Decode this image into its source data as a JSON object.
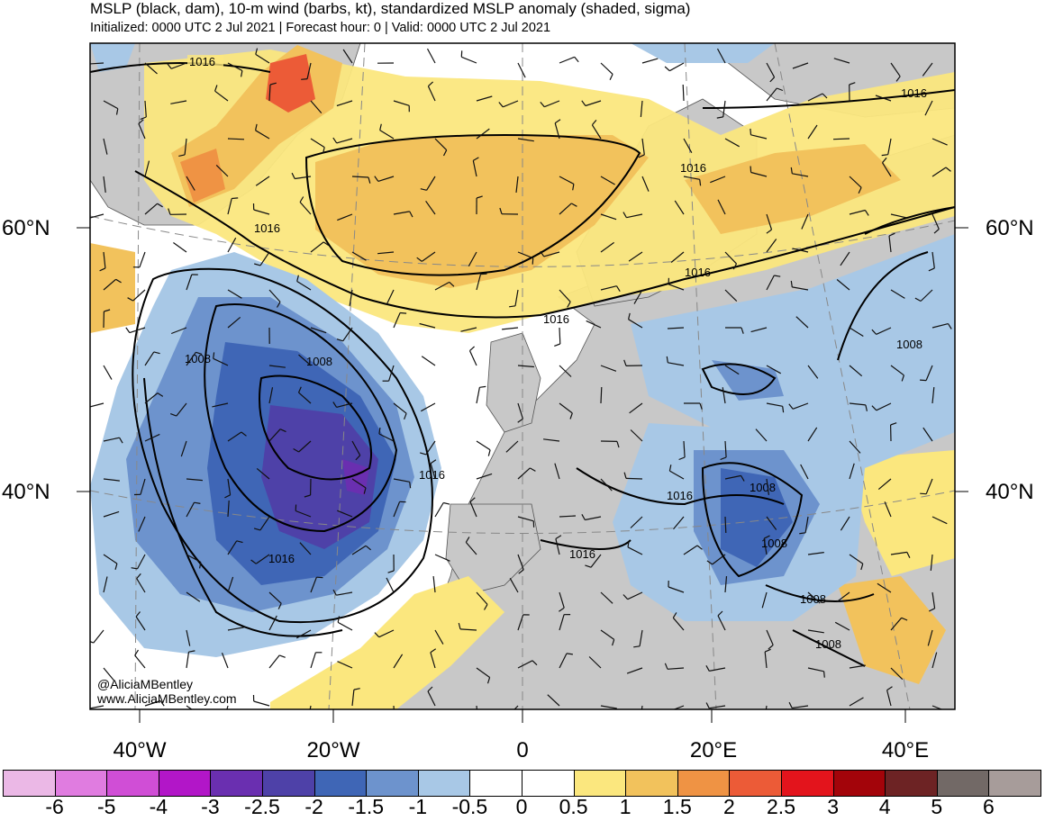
{
  "header": {
    "title": "MSLP (black, dam), 10-m wind (barbs, kt), standardized MSLP anomaly (shaded, sigma)",
    "subtitle": "Initialized: 0000 UTC 2 Jul 2021 | Forecast hour: 0 | Valid: 0000 UTC 2 Jul 2021"
  },
  "axes": {
    "lat_left": [
      "60°N",
      "40°N"
    ],
    "lat_right": [
      "60°N",
      "40°N"
    ],
    "lon_bottom": [
      "40°W",
      "20°W",
      "0",
      "20°E",
      "40°E"
    ]
  },
  "isobar_labels": [
    "1016",
    "1016",
    "1016",
    "1016",
    "1016",
    "1016",
    "1016",
    "1016",
    "1016",
    "1008",
    "1008",
    "1008",
    "1008",
    "1008",
    "1008"
  ],
  "credit": {
    "handle": "@AliciaMBentley",
    "website": "www.AliciaMBentley.com"
  },
  "colorbar": {
    "ticks": [
      "-6",
      "-5",
      "-4",
      "-3",
      "-2.5",
      "-2",
      "-1.5",
      "-1",
      "-0.5",
      "0",
      "0.5",
      "1",
      "1.5",
      "2",
      "2.5",
      "3",
      "4",
      "5",
      "6"
    ],
    "colors": [
      "#ebb8e6",
      "#e07ce0",
      "#d04ed6",
      "#b216c8",
      "#6a2fb0",
      "#4e41a8",
      "#3f66b6",
      "#6d93cd",
      "#a8c8e6",
      "#ffffff",
      "#ffffff",
      "#fbe77e",
      "#f2c25c",
      "#ef9344",
      "#ec5b37",
      "#e3141c",
      "#a3040a",
      "#6d2324",
      "#726966",
      "#a79c9a"
    ]
  },
  "colors": {
    "land_gray": "#c8c8c8",
    "ocean": "#ffffff",
    "isobar": "#000000"
  }
}
